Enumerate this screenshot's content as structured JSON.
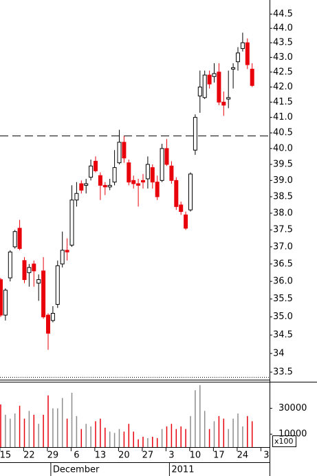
{
  "chart_data": {
    "type": "candlestick",
    "categories": [
      null,
      "15",
      null,
      null,
      null,
      null,
      "22",
      null,
      null,
      null,
      null,
      "29",
      null,
      null,
      null,
      null,
      "6",
      null,
      null,
      null,
      null,
      "13",
      null,
      null,
      null,
      null,
      "20",
      null,
      null,
      null,
      null,
      "27",
      null,
      null,
      null,
      null,
      "3",
      null,
      null,
      null,
      null,
      "10",
      null,
      null,
      null,
      null,
      "17",
      null,
      null,
      null,
      null,
      "24",
      null,
      null,
      null,
      null,
      "3"
    ],
    "month_categories": [
      "r",
      null,
      null,
      null,
      null,
      null,
      null,
      null,
      null,
      null,
      null,
      "December",
      null,
      null,
      null,
      null,
      null,
      null,
      null,
      null,
      null,
      null,
      null,
      null,
      null,
      null,
      null,
      null,
      null,
      null,
      null,
      null,
      null,
      null,
      null,
      null,
      "2011",
      null,
      null,
      null,
      null,
      null,
      null,
      null,
      null,
      null,
      null,
      null,
      null,
      null,
      null,
      null,
      null,
      null,
      null,
      null,
      null
    ],
    "open": [
      36.05,
      35.05,
      36.1,
      37.0,
      37.55,
      36.6,
      36.25,
      36.5,
      35.95,
      36.3,
      35.05,
      34.9,
      35.35,
      36.5,
      36.9,
      37.05,
      38.4,
      38.9,
      38.85,
      39.1,
      39.6,
      39.15,
      38.85,
      38.8,
      38.95,
      39.55,
      40.2,
      39.55,
      39.0,
      38.9,
      39.0,
      39.05,
      39.4,
      38.95,
      39.0,
      40.0,
      39.45,
      39.0,
      38.25,
      37.95,
      38.1,
      39.95,
      41.7,
      41.65,
      42.4,
      42.35,
      42.5,
      41.5,
      41.6,
      42.6,
      42.85,
      43.3,
      43.5,
      42.6,
      null,
      null,
      null
    ],
    "high": [
      36.1,
      35.8,
      36.9,
      37.5,
      37.8,
      36.7,
      36.5,
      36.6,
      36.2,
      36.7,
      35.1,
      35.3,
      36.6,
      37.45,
      37.25,
      38.85,
      38.95,
      39.0,
      39.05,
      39.65,
      39.75,
      39.25,
      38.95,
      39.05,
      39.95,
      40.6,
      40.4,
      39.65,
      39.15,
      39.05,
      39.2,
      39.75,
      39.5,
      39.15,
      40.15,
      40.3,
      39.6,
      39.1,
      38.35,
      38.05,
      39.25,
      41.1,
      42.55,
      42.55,
      42.55,
      42.8,
      42.8,
      41.85,
      42.55,
      42.8,
      43.35,
      43.85,
      43.65,
      42.8,
      null,
      null,
      null
    ],
    "low": [
      35.0,
      34.9,
      36.0,
      36.95,
      36.9,
      35.95,
      35.85,
      35.85,
      35.45,
      34.95,
      34.1,
      34.85,
      35.25,
      36.4,
      36.6,
      37.0,
      38.2,
      38.6,
      38.6,
      39.0,
      39.25,
      38.4,
      38.55,
      38.7,
      38.85,
      39.5,
      39.55,
      38.85,
      38.75,
      38.2,
      38.75,
      38.75,
      38.75,
      38.4,
      38.95,
      39.45,
      38.9,
      38.1,
      37.95,
      37.5,
      38.05,
      39.8,
      41.15,
      41.6,
      41.95,
      42.15,
      41.4,
      41.05,
      41.3,
      41.95,
      42.55,
      43.2,
      42.6,
      42.0,
      null,
      null,
      null
    ],
    "close": [
      35.05,
      35.75,
      36.85,
      37.45,
      36.95,
      36.05,
      36.4,
      36.3,
      36.05,
      35.0,
      34.55,
      35.1,
      36.45,
      36.9,
      36.85,
      38.4,
      38.6,
      38.7,
      38.9,
      39.45,
      39.3,
      38.85,
      38.8,
      38.85,
      39.4,
      40.2,
      39.7,
      38.95,
      38.9,
      38.85,
      38.95,
      39.5,
      38.95,
      38.5,
      40.0,
      39.5,
      39.0,
      38.2,
      38.05,
      37.55,
      39.2,
      41.0,
      42.0,
      42.4,
      42.1,
      42.45,
      41.5,
      41.4,
      41.65,
      42.65,
      43.15,
      43.5,
      42.75,
      42.05,
      null,
      null,
      null
    ],
    "volume": [
      33000,
      25000,
      22000,
      26000,
      32000,
      22000,
      28000,
      25000,
      18000,
      25000,
      40000,
      30000,
      30000,
      38000,
      22000,
      42000,
      24000,
      14000,
      18000,
      16000,
      20000,
      22000,
      15000,
      12000,
      11000,
      14000,
      12000,
      18000,
      12000,
      6000,
      8000,
      7000,
      8000,
      7000,
      14000,
      16000,
      18000,
      14000,
      16000,
      14000,
      24000,
      44000,
      48000,
      28000,
      14000,
      20000,
      24000,
      22000,
      14000,
      22000,
      26000,
      16000,
      24000,
      20000,
      null,
      null,
      null
    ],
    "up_color": "#ffffff",
    "down_color": "#e8000b",
    "volume_up_color": "#8c8c8c",
    "volume_down_color": "#e8000b",
    "log_scale": true,
    "ylim": [
      33.3,
      45.0
    ],
    "yticks": [
      {
        "value": 33.5,
        "label": "33.5"
      },
      34,
      {
        "value": 34.5,
        "label": "34.5"
      },
      {
        "value": 35,
        "label": "35.0"
      },
      {
        "value": 35.5,
        "label": "35.5"
      },
      {
        "value": 36,
        "label": "36.0"
      },
      {
        "value": 36.5,
        "label": "36.5"
      },
      {
        "value": 37,
        "label": "37.0"
      },
      {
        "value": 37.5,
        "label": "37.5"
      },
      {
        "value": 38,
        "label": "38.0"
      },
      {
        "value": 38.5,
        "label": "38.5"
      },
      {
        "value": 39,
        "label": "39.0"
      },
      {
        "value": 39.5,
        "label": "39.5"
      },
      {
        "value": 40,
        "label": "40.0"
      },
      {
        "value": 40.5,
        "label": "40.5"
      },
      {
        "value": 41,
        "label": "41.0"
      },
      {
        "value": 41.5,
        "label": "41.5"
      },
      {
        "value": 42,
        "label": "42.0"
      },
      {
        "value": 42.5,
        "label": "42.5"
      },
      {
        "value": 43,
        "label": "43.0"
      },
      {
        "value": 43.5,
        "label": "43.5"
      },
      {
        "value": 44,
        "label": "44.0"
      },
      {
        "value": 44.5,
        "label": "44.5"
      }
    ],
    "reference_line": 40.4,
    "y2lim": [
      0,
      50000
    ],
    "y2ticks": [
      10000,
      30000
    ],
    "volume_unit_label": "x100"
  }
}
